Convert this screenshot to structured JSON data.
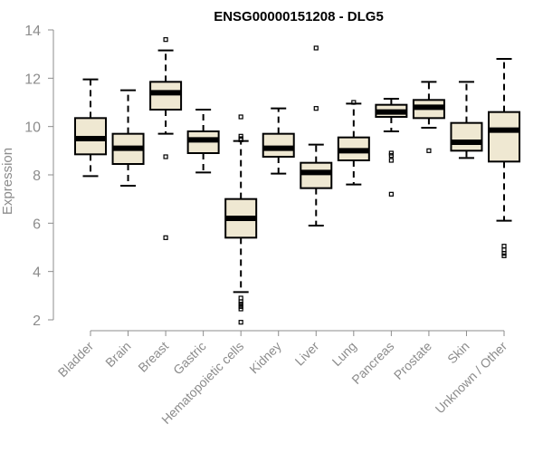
{
  "chart_data": {
    "type": "box",
    "title": "ENSG00000151208 - DLG5",
    "xlabel": "",
    "ylabel": "Expression",
    "ylim": [
      2,
      14
    ],
    "yticks": [
      2,
      4,
      6,
      8,
      10,
      12,
      14
    ],
    "grid": false,
    "legend": "none",
    "categories": [
      "Bladder",
      "Brain",
      "Breast",
      "Gastric",
      "Hematopoietic cells",
      "Kidney",
      "Liver",
      "Lung",
      "Pancreas",
      "Prostate",
      "Skin",
      "Unknown / Other"
    ],
    "boxes": [
      {
        "category": "Bladder",
        "whisker_low": 7.95,
        "q1": 8.85,
        "median": 9.5,
        "q3": 10.35,
        "whisker_high": 11.95,
        "outliers": []
      },
      {
        "category": "Brain",
        "whisker_low": 7.55,
        "q1": 8.45,
        "median": 9.1,
        "q3": 9.7,
        "whisker_high": 11.5,
        "outliers": []
      },
      {
        "category": "Breast",
        "whisker_low": 9.7,
        "q1": 10.7,
        "median": 11.4,
        "q3": 11.85,
        "whisker_high": 13.15,
        "outliers": [
          13.6,
          8.75,
          5.4
        ]
      },
      {
        "category": "Gastric",
        "whisker_low": 8.1,
        "q1": 8.9,
        "median": 9.45,
        "q3": 9.8,
        "whisker_high": 10.7,
        "outliers": []
      },
      {
        "category": "Hematopoietic cells",
        "whisker_low": 3.15,
        "q1": 5.4,
        "median": 6.2,
        "q3": 7.0,
        "whisker_high": 9.4,
        "outliers": [
          10.4,
          9.6,
          9.5,
          9.45,
          2.9,
          2.75,
          2.65,
          2.55,
          2.45,
          1.9
        ]
      },
      {
        "category": "Kidney",
        "whisker_low": 8.05,
        "q1": 8.75,
        "median": 9.1,
        "q3": 9.7,
        "whisker_high": 10.75,
        "outliers": []
      },
      {
        "category": "Liver",
        "whisker_low": 5.9,
        "q1": 7.45,
        "median": 8.1,
        "q3": 8.5,
        "whisker_high": 9.25,
        "outliers": [
          13.25,
          10.75
        ]
      },
      {
        "category": "Lung",
        "whisker_low": 7.6,
        "q1": 8.6,
        "median": 9.0,
        "q3": 9.55,
        "whisker_high": 10.95,
        "outliers": [
          11.0
        ]
      },
      {
        "category": "Pancreas",
        "whisker_low": 9.8,
        "q1": 10.4,
        "median": 10.6,
        "q3": 10.9,
        "whisker_high": 11.15,
        "outliers": [
          8.9,
          8.8,
          8.6,
          7.2
        ]
      },
      {
        "category": "Prostate",
        "whisker_low": 9.95,
        "q1": 10.35,
        "median": 10.8,
        "q3": 11.1,
        "whisker_high": 11.85,
        "outliers": [
          9.0
        ]
      },
      {
        "category": "Skin",
        "whisker_low": 8.7,
        "q1": 9.0,
        "median": 9.35,
        "q3": 10.15,
        "whisker_high": 11.85,
        "outliers": []
      },
      {
        "category": "Unknown / Other",
        "whisker_low": 6.1,
        "q1": 8.55,
        "median": 9.85,
        "q3": 10.6,
        "whisker_high": 12.8,
        "outliers": [
          5.05,
          4.9,
          4.75,
          4.65
        ]
      }
    ],
    "colors": {
      "box_fill": "#efe8d2",
      "box_stroke": "#000000",
      "median": "#000000",
      "axis": "#8c8c8c"
    }
  }
}
